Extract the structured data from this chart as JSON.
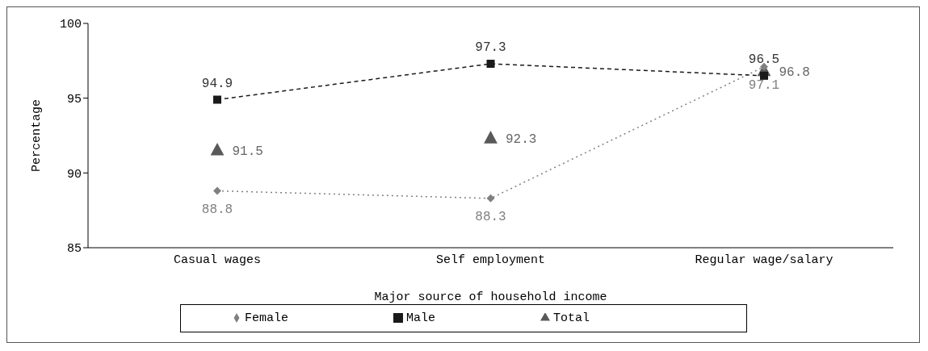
{
  "chart_data": {
    "type": "line",
    "categories": [
      "Casual wages",
      "Self employment",
      "Regular wage/salary"
    ],
    "xlabel": "Major source of household income",
    "ylabel": "Percentage",
    "ylim": [
      85,
      100
    ],
    "yticks": [
      85,
      90,
      95,
      100
    ],
    "grid": false,
    "legend": "bottom",
    "data_labels": true,
    "series": [
      {
        "name": "Female",
        "color": "#808080",
        "values": [
          88.8,
          88.3,
          97.1
        ],
        "marker": "diamond",
        "line_style": "dotted"
      },
      {
        "name": "Male",
        "color": "#1a1a1a",
        "values": [
          94.9,
          97.3,
          96.5
        ],
        "marker": "square",
        "line_style": "dashed"
      },
      {
        "name": "Total",
        "type": "scatter",
        "color": "#595959",
        "values": [
          91.5,
          92.3,
          96.8
        ],
        "marker": "triangle"
      }
    ]
  }
}
